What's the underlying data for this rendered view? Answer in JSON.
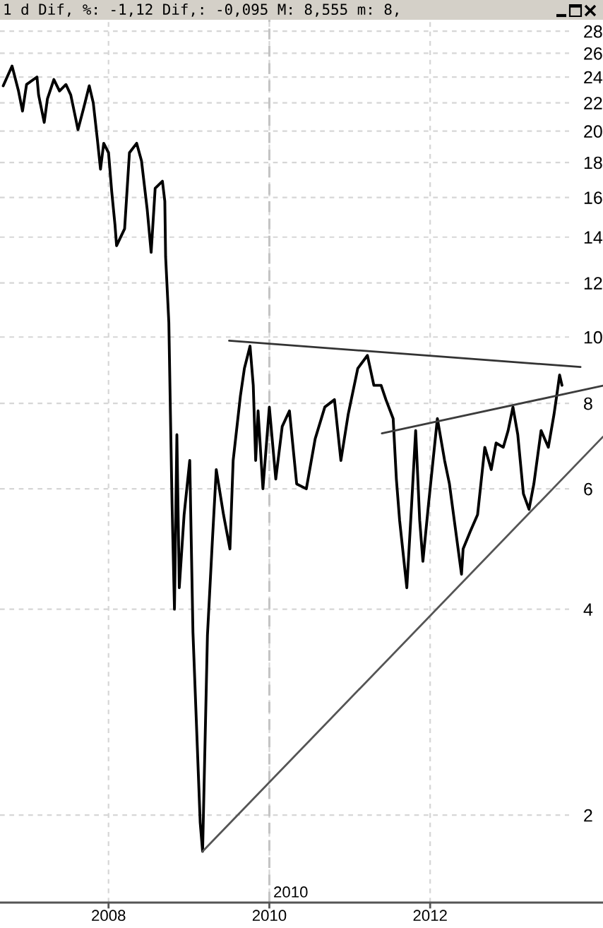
{
  "chart_data": {
    "type": "line",
    "title": "1 d Dif, %: -1,12 Dif,: -0,095 M: 8,555 m: 8,",
    "log": "y",
    "grid": true,
    "xlim": [
      2006.65,
      2014.15
    ],
    "ylim": [
      1.49,
      29.1
    ],
    "xticks": [
      2008,
      2010,
      2012
    ],
    "yticks": [
      2,
      4,
      6,
      8,
      10,
      12,
      14,
      16,
      18,
      20,
      22,
      24,
      26,
      28
    ],
    "ref_lines": [
      {
        "axis": "x",
        "value": 2010,
        "label": "2010",
        "color": "#c4c4c4",
        "line_style": "dashed"
      }
    ],
    "series": [
      {
        "color": "#000000",
        "x": [
          2006.69,
          2006.8,
          2006.88,
          2006.93,
          2006.98,
          2007.11,
          2007.13,
          2007.2,
          2007.24,
          2007.32,
          2007.39,
          2007.47,
          2007.53,
          2007.59,
          2007.62,
          2007.69,
          2007.76,
          2007.81,
          2007.86,
          2007.9,
          2007.94,
          2008.0,
          2008.04,
          2008.08,
          2008.1,
          2008.2,
          2008.26,
          2008.35,
          2008.41,
          2008.48,
          2008.53,
          2008.58,
          2008.67,
          2008.7,
          2008.71,
          2008.75,
          2008.77,
          2008.79,
          2008.82,
          2008.85,
          2008.88,
          2008.94,
          2009.01,
          2009.05,
          2009.14,
          2009.17,
          2009.23,
          2009.29,
          2009.34,
          2009.43,
          2009.51,
          2009.55,
          2009.64,
          2009.69,
          2009.76,
          2009.8,
          2009.83,
          2009.86,
          2009.92,
          2010.0,
          2010.08,
          2010.16,
          2010.25,
          2010.34,
          2010.46,
          2010.57,
          2010.69,
          2010.81,
          2010.89,
          2010.98,
          2011.1,
          2011.22,
          2011.3,
          2011.39,
          2011.45,
          2011.54,
          2011.58,
          2011.62,
          2011.71,
          2011.77,
          2011.82,
          2011.87,
          2011.91,
          2011.98,
          2012.09,
          2012.18,
          2012.24,
          2012.3,
          2012.39,
          2012.41,
          2012.5,
          2012.59,
          2012.68,
          2012.76,
          2012.82,
          2012.91,
          2012.97,
          2013.03,
          2013.09,
          2013.16,
          2013.23,
          2013.29,
          2013.38,
          2013.47,
          2013.54,
          2013.58,
          2013.61,
          2013.64
        ],
        "values": [
          23.3,
          24.9,
          22.9,
          21.4,
          23.4,
          24.0,
          22.6,
          20.6,
          22.3,
          23.8,
          22.9,
          23.4,
          22.6,
          20.9,
          20.1,
          21.6,
          23.3,
          22.0,
          19.5,
          17.6,
          19.2,
          18.6,
          16.3,
          14.6,
          13.6,
          14.4,
          18.6,
          19.2,
          18.1,
          15.4,
          13.3,
          16.5,
          16.9,
          15.8,
          13.1,
          10.5,
          7.7,
          5.7,
          4.0,
          7.2,
          4.3,
          5.5,
          6.6,
          3.7,
          1.95,
          1.77,
          3.66,
          5.0,
          6.4,
          5.5,
          4.9,
          6.6,
          8.2,
          9.0,
          9.7,
          8.5,
          6.6,
          7.8,
          6.0,
          7.9,
          6.2,
          7.4,
          7.8,
          6.1,
          6.0,
          7.1,
          7.9,
          8.1,
          6.6,
          7.7,
          9.0,
          9.4,
          8.5,
          8.5,
          8.1,
          7.6,
          6.2,
          5.4,
          4.3,
          5.7,
          7.3,
          5.4,
          4.7,
          5.7,
          7.6,
          6.6,
          6.1,
          5.4,
          4.5,
          4.9,
          5.2,
          5.5,
          6.9,
          6.4,
          7.0,
          6.9,
          7.3,
          7.9,
          7.2,
          5.9,
          5.6,
          6.1,
          7.3,
          6.9,
          7.7,
          8.3,
          8.8,
          8.5
        ]
      },
      {
        "color": "#333333",
        "x": [
          2009.5,
          2013.87
        ],
        "values": [
          9.88,
          9.04
        ]
      },
      {
        "color": "#3c3c3c",
        "x": [
          2011.4,
          2014.15
        ],
        "values": [
          7.23,
          8.49
        ]
      },
      {
        "color": "#555555",
        "x": [
          2009.17,
          2014.15
        ],
        "values": [
          1.77,
          7.15
        ]
      }
    ]
  }
}
